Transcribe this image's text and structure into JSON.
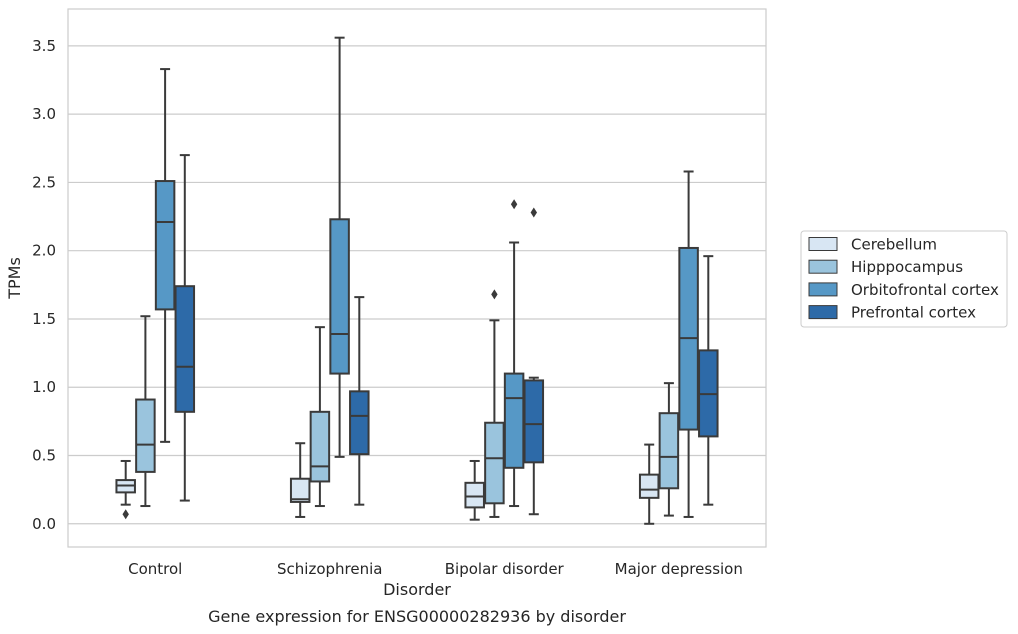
{
  "chart_data": {
    "type": "box",
    "title": "",
    "caption": "Gene expression for ENSG00000282936 by disorder",
    "xlabel": "Disorder",
    "ylabel": "TPMs",
    "categories": [
      "Control",
      "Schizophrenia",
      "Bipolar disorder",
      "Major depression"
    ],
    "ylim": [
      -0.17,
      3.77
    ],
    "yticks": [
      "0.0",
      "0.5",
      "1.0",
      "1.5",
      "2.0",
      "2.5",
      "3.0",
      "3.5"
    ],
    "grid": "horizontal",
    "legend_position": "right",
    "series": [
      {
        "name": "Cerebellum",
        "color": "#d8e6f3",
        "boxes": [
          {
            "min": 0.14,
            "q1": 0.23,
            "median": 0.28,
            "q3": 0.32,
            "max": 0.46,
            "outliers": [
              0.07
            ]
          },
          {
            "min": 0.05,
            "q1": 0.16,
            "median": 0.18,
            "q3": 0.33,
            "max": 0.59,
            "outliers": []
          },
          {
            "min": 0.03,
            "q1": 0.12,
            "median": 0.2,
            "q3": 0.3,
            "max": 0.46,
            "outliers": []
          },
          {
            "min": 0.0,
            "q1": 0.19,
            "median": 0.25,
            "q3": 0.36,
            "max": 0.58,
            "outliers": []
          }
        ]
      },
      {
        "name": "Hipppocampus",
        "color": "#9ac4dd",
        "boxes": [
          {
            "min": 0.13,
            "q1": 0.38,
            "median": 0.58,
            "q3": 0.91,
            "max": 1.52,
            "outliers": []
          },
          {
            "min": 0.13,
            "q1": 0.31,
            "median": 0.42,
            "q3": 0.82,
            "max": 1.44,
            "outliers": []
          },
          {
            "min": 0.05,
            "q1": 0.15,
            "median": 0.48,
            "q3": 0.74,
            "max": 1.49,
            "outliers": [
              1.68
            ]
          },
          {
            "min": 0.06,
            "q1": 0.26,
            "median": 0.49,
            "q3": 0.81,
            "max": 1.03,
            "outliers": []
          }
        ]
      },
      {
        "name": "Orbitofrontal cortex",
        "color": "#5698c6",
        "boxes": [
          {
            "min": 0.6,
            "q1": 1.57,
            "median": 2.21,
            "q3": 2.51,
            "max": 3.33,
            "outliers": []
          },
          {
            "min": 0.49,
            "q1": 1.1,
            "median": 1.39,
            "q3": 2.23,
            "max": 3.56,
            "outliers": []
          },
          {
            "min": 0.13,
            "q1": 0.41,
            "median": 0.92,
            "q3": 1.1,
            "max": 2.06,
            "outliers": [
              2.34
            ]
          },
          {
            "min": 0.05,
            "q1": 0.69,
            "median": 1.36,
            "q3": 2.02,
            "max": 2.58,
            "outliers": []
          }
        ]
      },
      {
        "name": "Prefrontal cortex",
        "color": "#2d6aa8",
        "boxes": [
          {
            "min": 0.17,
            "q1": 0.82,
            "median": 1.15,
            "q3": 1.74,
            "max": 2.7,
            "outliers": []
          },
          {
            "min": 0.14,
            "q1": 0.51,
            "median": 0.79,
            "q3": 0.97,
            "max": 1.66,
            "outliers": []
          },
          {
            "min": 0.07,
            "q1": 0.45,
            "median": 0.73,
            "q3": 1.05,
            "max": 1.07,
            "outliers": [
              2.28
            ]
          },
          {
            "min": 0.14,
            "q1": 0.64,
            "median": 0.95,
            "q3": 1.27,
            "max": 1.96,
            "outliers": []
          }
        ]
      }
    ]
  }
}
